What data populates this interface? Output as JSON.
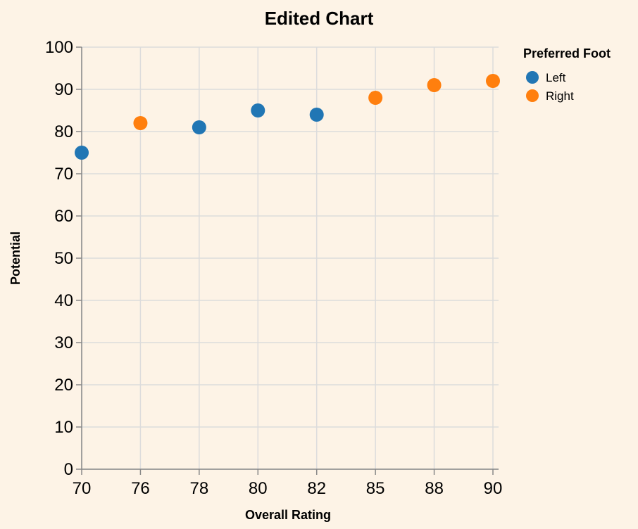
{
  "chart_data": {
    "type": "scatter",
    "title": "Edited Chart",
    "xlabel": "Overall Rating",
    "ylabel": "Potential",
    "x_scale": "ordinal",
    "x_categories": [
      "70",
      "76",
      "78",
      "80",
      "82",
      "85",
      "88",
      "90"
    ],
    "yticks": [
      "0",
      "10",
      "20",
      "30",
      "40",
      "50",
      "60",
      "70",
      "80",
      "90",
      "100"
    ],
    "ylim": [
      0,
      100
    ],
    "grid": true,
    "legend": {
      "title": "Preferred Foot",
      "position": "top-right",
      "entries": [
        {
          "label": "Left",
          "color": "#2176b4"
        },
        {
          "label": "Right",
          "color": "#ff7f0e"
        }
      ]
    },
    "points": [
      {
        "x": "70",
        "y": 75,
        "foot": "Left"
      },
      {
        "x": "76",
        "y": 82,
        "foot": "Right"
      },
      {
        "x": "78",
        "y": 81,
        "foot": "Left"
      },
      {
        "x": "80",
        "y": 85,
        "foot": "Left"
      },
      {
        "x": "82",
        "y": 84,
        "foot": "Left"
      },
      {
        "x": "85",
        "y": 88,
        "foot": "Right"
      },
      {
        "x": "88",
        "y": 91,
        "foot": "Right"
      },
      {
        "x": "90",
        "y": 92,
        "foot": "Right"
      }
    ]
  },
  "colors": {
    "background": "#fdf3e6",
    "left": "#2176b4",
    "right": "#ff7f0e"
  }
}
